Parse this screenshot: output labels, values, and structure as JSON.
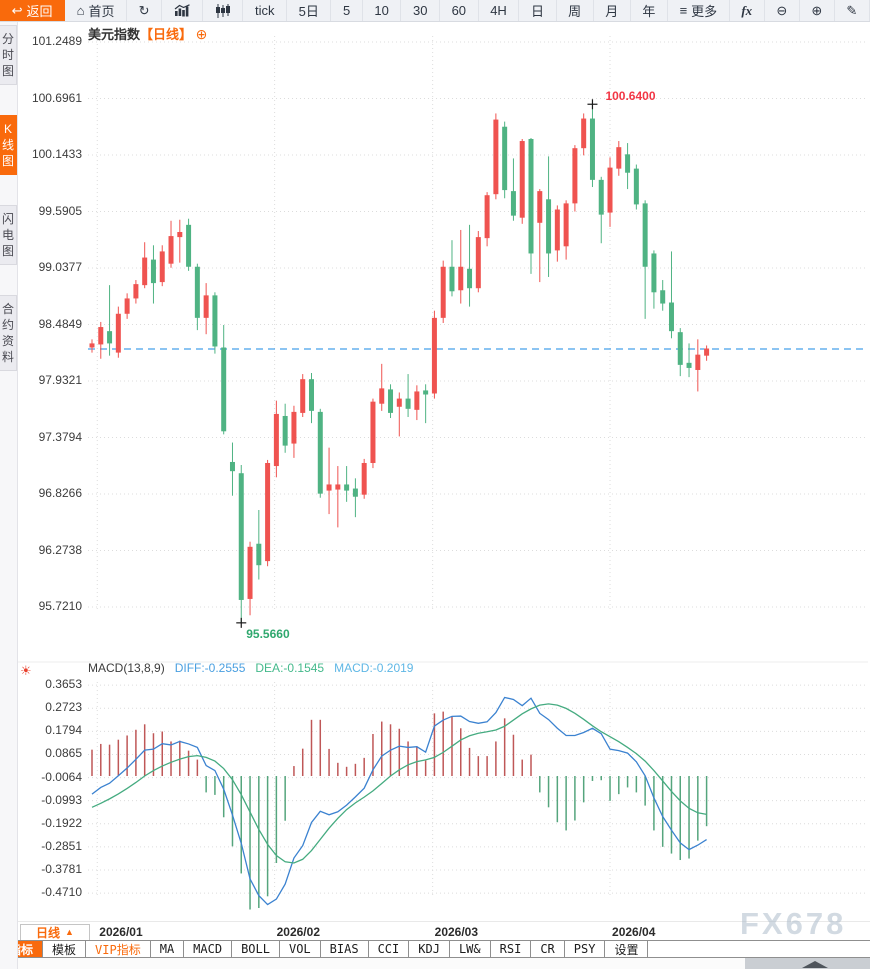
{
  "app": {
    "watermark": "FX678"
  },
  "toolbar": {
    "items": [
      {
        "name": "back-button",
        "label": "返回",
        "icon": "back-icon",
        "active": true
      },
      {
        "name": "home-button",
        "label": "首页",
        "icon": "home-icon"
      },
      {
        "name": "refresh-button",
        "label": "",
        "icon": "refresh-icon"
      },
      {
        "name": "area-chart-button",
        "label": "",
        "icon": "area-chart-icon"
      },
      {
        "name": "candlestick-chart-button",
        "label": "",
        "icon": "candlestick-icon"
      },
      {
        "name": "interval-tick-button",
        "label": "tick"
      },
      {
        "name": "interval-5d-button",
        "label": "5日"
      },
      {
        "name": "interval-5m-button",
        "label": "5"
      },
      {
        "name": "interval-10m-button",
        "label": "10"
      },
      {
        "name": "interval-30m-button",
        "label": "30"
      },
      {
        "name": "interval-60m-button",
        "label": "60"
      },
      {
        "name": "interval-4h-button",
        "label": "4H"
      },
      {
        "name": "interval-day-button",
        "label": "日"
      },
      {
        "name": "interval-week-button",
        "label": "周"
      },
      {
        "name": "interval-month-button",
        "label": "月"
      },
      {
        "name": "interval-year-button",
        "label": "年"
      },
      {
        "name": "more-button",
        "label": "更多",
        "icon": "menu-icon"
      },
      {
        "name": "formula-button",
        "label": "fx",
        "fx": true
      },
      {
        "name": "zoom-out-button",
        "label": "",
        "icon": "zoom-out-icon"
      },
      {
        "name": "zoom-in-button",
        "label": "",
        "icon": "zoom-in-icon"
      },
      {
        "name": "draw-button",
        "label": "",
        "icon": "pencil-icon"
      }
    ]
  },
  "sidebar": {
    "items": [
      {
        "name": "tab-time-chart",
        "label": "分时图",
        "active": false
      },
      {
        "name": "tab-kline-chart",
        "label": "K线图",
        "active": true
      },
      {
        "name": "tab-lightning-chart",
        "label": "闪电图",
        "active": false
      },
      {
        "name": "tab-contract-info",
        "label": "合约资料",
        "active": false
      }
    ]
  },
  "chart": {
    "symbol_label": "美元指数",
    "interval_label": "【日线】",
    "add_icon": "⊕"
  },
  "macd_legend": {
    "title": "MACD(13,8,9)",
    "diff_label": "DIFF:-0.2555",
    "dea_label": "DEA:-0.1545",
    "macd_label": "MACD:-0.2019"
  },
  "xaxis": {
    "interval_button_label": "日线",
    "interval_button_icon": "up-triangle-icon"
  },
  "bottom_toolbar": {
    "items": [
      {
        "name": "tab-indicators",
        "label": "指标",
        "active": true
      },
      {
        "name": "tab-templates",
        "label": "模板"
      },
      {
        "name": "tab-vip-indicators",
        "label": "VIP指标",
        "vip": true
      },
      {
        "name": "tab-ma",
        "label": "MA"
      },
      {
        "name": "tab-macd",
        "label": "MACD"
      },
      {
        "name": "tab-boll",
        "label": "BOLL"
      },
      {
        "name": "tab-vol",
        "label": "VOL"
      },
      {
        "name": "tab-bias",
        "label": "BIAS"
      },
      {
        "name": "tab-cci",
        "label": "CCI"
      },
      {
        "name": "tab-kdj",
        "label": "KDJ"
      },
      {
        "name": "tab-lw",
        "label": "LW&"
      },
      {
        "name": "tab-rsi",
        "label": "RSI"
      },
      {
        "name": "tab-cr",
        "label": "CR"
      },
      {
        "name": "tab-psy",
        "label": "PSY"
      },
      {
        "name": "tab-settings",
        "label": "设置"
      }
    ]
  },
  "colors": {
    "accent": "#f96a0c",
    "up": "#ef5350",
    "down": "#4fb383",
    "hist_up": "#bf5757",
    "hist_down": "#55a57d",
    "diff_line": "#3b82d0",
    "dea_line": "#45ab80",
    "diff_text": "#4a9fe0",
    "dea_text": "#44b98b",
    "macd_text": "#5fb7e5",
    "last_price_line": "#1789e6",
    "high_text": "#f23645",
    "low_text": "#2fa86e"
  },
  "chart_data": {
    "type": "candlestick",
    "title": "美元指数【日线】",
    "legend_position": "top-left",
    "grid": true,
    "y_axis_ticks": [
      101.2489,
      100.6961,
      100.1433,
      99.5905,
      99.0377,
      98.4849,
      97.9321,
      97.3794,
      96.8266,
      96.2738,
      95.721
    ],
    "macd_axis_ticks": [
      0.3653,
      0.2723,
      0.1794,
      0.0865,
      -0.0064,
      -0.0993,
      -0.1922,
      -0.2851,
      -0.3781,
      -0.471
    ],
    "x_ticks": [
      {
        "label": "2026/01",
        "index": 0.6
      },
      {
        "label": "2026/02",
        "index": 20.8
      },
      {
        "label": "2026/03",
        "index": 38.8
      },
      {
        "label": "2026/04",
        "index": 59.0
      }
    ],
    "last_price": 98.245,
    "high_annotation": {
      "text": "100.6400",
      "value": 100.64,
      "index": 57
    },
    "low_annotation": {
      "text": "95.5660",
      "value": 95.566,
      "index": 17
    },
    "candles_ohlc": [
      [
        98.26,
        98.34,
        98.21,
        98.3
      ],
      [
        98.29,
        98.51,
        98.15,
        98.46
      ],
      [
        98.42,
        98.87,
        98.18,
        98.3
      ],
      [
        98.21,
        98.66,
        98.16,
        98.59
      ],
      [
        98.59,
        98.79,
        98.54,
        98.74
      ],
      [
        98.74,
        98.92,
        98.69,
        98.88
      ],
      [
        98.87,
        99.29,
        98.84,
        99.14
      ],
      [
        99.12,
        99.26,
        98.69,
        98.89
      ],
      [
        98.9,
        99.26,
        98.86,
        99.2
      ],
      [
        99.08,
        99.5,
        99.04,
        99.35
      ],
      [
        99.34,
        99.51,
        99.09,
        99.39
      ],
      [
        99.46,
        99.52,
        99.01,
        99.05
      ],
      [
        99.05,
        99.08,
        98.43,
        98.55
      ],
      [
        98.55,
        98.89,
        98.39,
        98.77
      ],
      [
        98.77,
        98.8,
        98.2,
        98.27
      ],
      [
        98.26,
        98.48,
        97.41,
        97.44
      ],
      [
        97.14,
        97.33,
        96.81,
        97.05
      ],
      [
        97.03,
        97.11,
        95.566,
        95.79
      ],
      [
        95.8,
        96.36,
        95.64,
        96.31
      ],
      [
        96.34,
        96.67,
        95.99,
        96.13
      ],
      [
        96.17,
        97.16,
        96.12,
        97.13
      ],
      [
        97.1,
        97.74,
        96.99,
        97.61
      ],
      [
        97.59,
        97.71,
        97.23,
        97.3
      ],
      [
        97.32,
        97.69,
        97.18,
        97.63
      ],
      [
        97.62,
        98.0,
        97.58,
        97.95
      ],
      [
        97.95,
        98.01,
        97.52,
        97.64
      ],
      [
        97.63,
        97.66,
        96.79,
        96.83
      ],
      [
        96.86,
        97.28,
        96.63,
        96.92
      ],
      [
        96.87,
        97.1,
        96.5,
        96.92
      ],
      [
        96.92,
        97.1,
        96.75,
        96.86
      ],
      [
        96.88,
        96.98,
        96.6,
        96.8
      ],
      [
        96.82,
        97.17,
        96.78,
        97.13
      ],
      [
        97.13,
        97.76,
        97.08,
        97.73
      ],
      [
        97.71,
        98.1,
        97.64,
        97.86
      ],
      [
        97.85,
        97.9,
        97.57,
        97.62
      ],
      [
        97.68,
        97.82,
        97.39,
        97.76
      ],
      [
        97.76,
        98.0,
        97.58,
        97.66
      ],
      [
        97.65,
        97.89,
        97.55,
        97.83
      ],
      [
        97.84,
        97.9,
        97.52,
        97.8
      ],
      [
        97.81,
        98.62,
        97.76,
        98.55
      ],
      [
        98.55,
        99.11,
        98.5,
        99.05
      ],
      [
        99.05,
        99.31,
        98.76,
        98.81
      ],
      [
        98.82,
        99.41,
        98.69,
        99.05
      ],
      [
        99.03,
        99.46,
        98.66,
        98.84
      ],
      [
        98.84,
        99.4,
        98.8,
        99.34
      ],
      [
        99.33,
        99.78,
        99.25,
        99.75
      ],
      [
        99.76,
        100.55,
        99.71,
        100.49
      ],
      [
        100.42,
        100.47,
        99.72,
        99.8
      ],
      [
        99.79,
        100.11,
        99.5,
        99.55
      ],
      [
        99.53,
        100.3,
        99.47,
        100.28
      ],
      [
        100.3,
        100.31,
        98.98,
        99.18
      ],
      [
        99.48,
        99.81,
        98.9,
        99.79
      ],
      [
        99.71,
        100.13,
        98.95,
        99.18
      ],
      [
        99.21,
        99.65,
        99.1,
        99.61
      ],
      [
        99.25,
        99.7,
        99.12,
        99.67
      ],
      [
        99.67,
        100.24,
        99.59,
        100.21
      ],
      [
        100.21,
        100.55,
        100.14,
        100.5
      ],
      [
        100.5,
        100.64,
        99.83,
        99.9
      ],
      [
        99.9,
        99.93,
        99.28,
        99.56
      ],
      [
        99.58,
        100.12,
        99.44,
        100.02
      ],
      [
        100.01,
        100.28,
        99.94,
        100.22
      ],
      [
        100.15,
        100.26,
        99.81,
        99.97
      ],
      [
        100.01,
        100.05,
        99.61,
        99.66
      ],
      [
        99.67,
        99.7,
        98.54,
        99.05
      ],
      [
        99.18,
        99.21,
        98.64,
        98.8
      ],
      [
        98.82,
        98.92,
        98.62,
        98.69
      ],
      [
        98.7,
        99.2,
        98.35,
        98.42
      ],
      [
        98.41,
        98.45,
        97.98,
        98.09
      ],
      [
        98.11,
        98.3,
        97.97,
        98.06
      ],
      [
        98.04,
        98.34,
        97.83,
        98.19
      ],
      [
        98.18,
        98.28,
        98.13,
        98.25
      ]
    ],
    "macd": {
      "params": "(13,8,9)",
      "diff_last": -0.2555,
      "dea_last": -0.1545,
      "macd_last": -0.2019,
      "diff": [
        -0.073,
        -0.046,
        -0.029,
        0.001,
        0.032,
        0.067,
        0.104,
        0.108,
        0.13,
        0.125,
        0.139,
        0.129,
        0.115,
        0.042,
        0.022,
        -0.053,
        -0.157,
        -0.271,
        -0.414,
        -0.481,
        -0.517,
        -0.495,
        -0.435,
        -0.33,
        -0.28,
        -0.187,
        -0.142,
        -0.156,
        -0.144,
        -0.117,
        -0.084,
        -0.049,
        0.025,
        0.08,
        0.104,
        0.12,
        0.115,
        0.118,
        0.096,
        0.201,
        0.225,
        0.24,
        0.241,
        0.219,
        0.212,
        0.218,
        0.255,
        0.316,
        0.308,
        0.283,
        0.313,
        0.252,
        0.227,
        0.192,
        0.163,
        0.163,
        0.175,
        0.192,
        0.17,
        0.108,
        0.102,
        0.092,
        0.057,
        0.001,
        -0.088,
        -0.163,
        -0.218,
        -0.269,
        -0.296,
        -0.278,
        -0.2555
      ],
      "dea": [
        -0.126,
        -0.11,
        -0.092,
        -0.072,
        -0.05,
        -0.026,
        0.0,
        0.022,
        0.04,
        0.055,
        0.068,
        0.078,
        0.082,
        0.075,
        0.06,
        0.03,
        -0.015,
        -0.075,
        -0.145,
        -0.215,
        -0.275,
        -0.32,
        -0.345,
        -0.35,
        -0.335,
        -0.3,
        -0.255,
        -0.21,
        -0.17,
        -0.135,
        -0.108,
        -0.085,
        -0.06,
        -0.03,
        0.0,
        0.025,
        0.045,
        0.058,
        0.065,
        0.075,
        0.095,
        0.12,
        0.145,
        0.162,
        0.172,
        0.178,
        0.185,
        0.2,
        0.225,
        0.25,
        0.27,
        0.285,
        0.29,
        0.285,
        0.272,
        0.252,
        0.228,
        0.202,
        0.178,
        0.158,
        0.138,
        0.115,
        0.09,
        0.06,
        0.022,
        -0.02,
        -0.062,
        -0.1,
        -0.13,
        -0.148,
        -0.1545
      ],
      "hist": [
        0.106,
        0.129,
        0.126,
        0.146,
        0.163,
        0.186,
        0.208,
        0.172,
        0.179,
        0.139,
        0.142,
        0.102,
        0.066,
        -0.066,
        -0.076,
        -0.166,
        -0.283,
        -0.392,
        -0.537,
        -0.531,
        -0.484,
        -0.35,
        -0.18,
        0.04,
        0.11,
        0.226,
        0.226,
        0.109,
        0.053,
        0.037,
        0.049,
        0.073,
        0.169,
        0.219,
        0.208,
        0.19,
        0.139,
        0.119,
        0.062,
        0.252,
        0.259,
        0.239,
        0.192,
        0.113,
        0.08,
        0.08,
        0.139,
        0.232,
        0.166,
        0.066,
        0.086,
        -0.066,
        -0.126,
        -0.186,
        -0.219,
        -0.179,
        -0.106,
        -0.02,
        -0.017,
        -0.1,
        -0.073,
        -0.046,
        -0.066,
        -0.119,
        -0.219,
        -0.285,
        -0.312,
        -0.338,
        -0.332,
        -0.26,
        -0.2019
      ]
    }
  }
}
